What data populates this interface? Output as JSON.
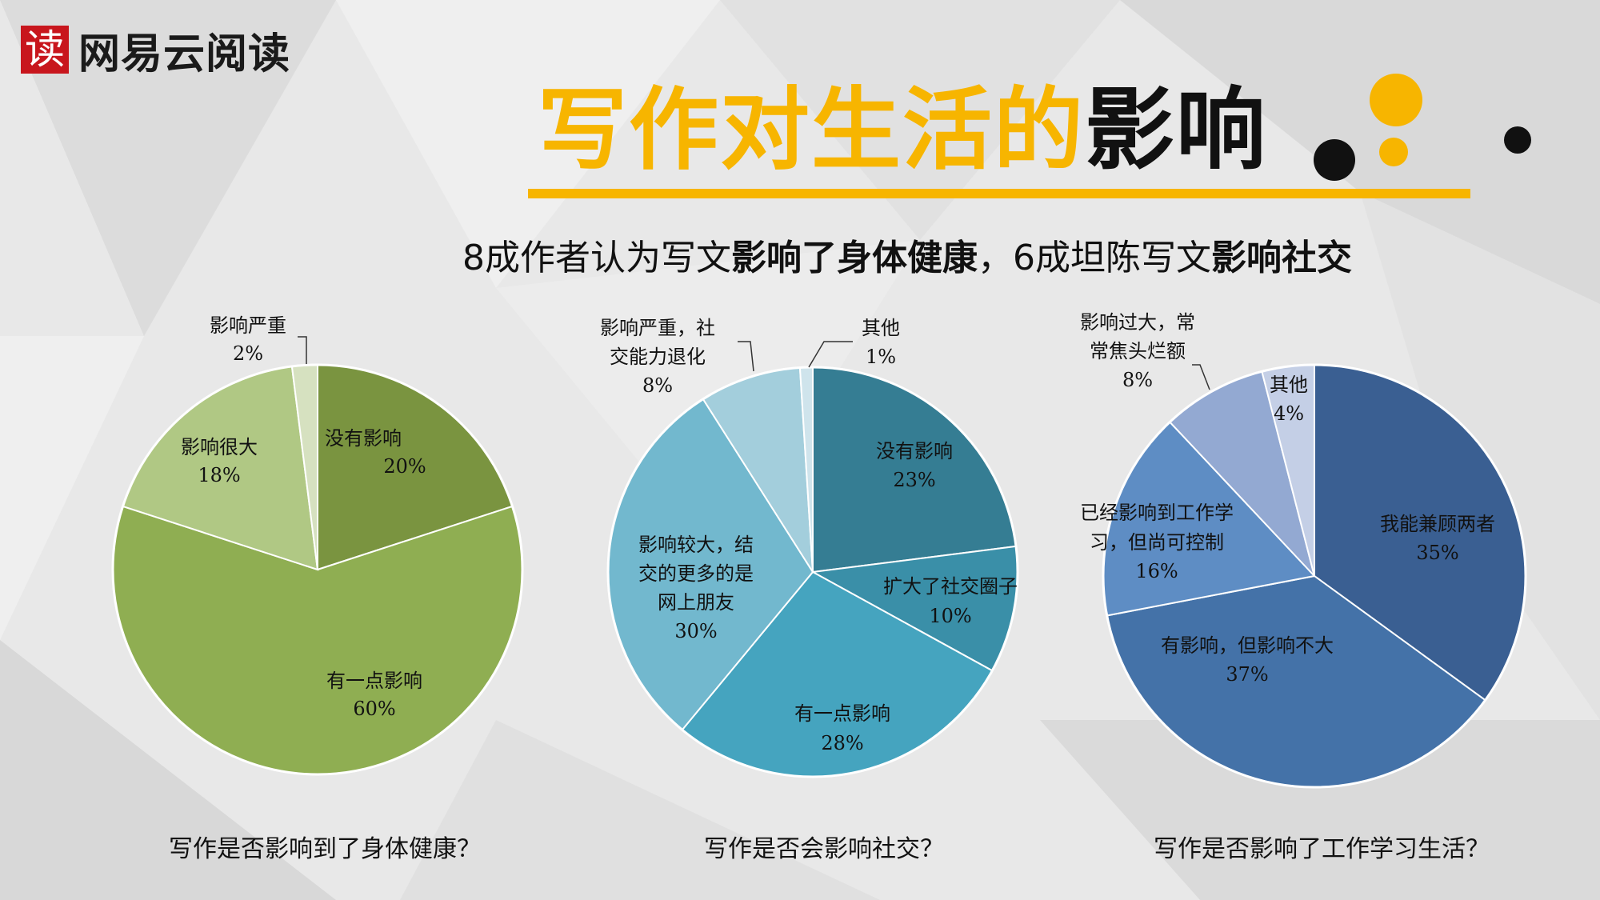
{
  "logo": {
    "mark": "读",
    "text": "网易云阅读"
  },
  "title": {
    "part1": "写作对生活的",
    "part2": "影响"
  },
  "subtitle": {
    "s1": "8成作者认为写文",
    "s2": "影响了身体健康",
    "s3": "，6成坦陈写文",
    "s4": "影响社交"
  },
  "colors": {
    "accent": "#f7b500",
    "dark": "#111111"
  },
  "chart_data": [
    {
      "type": "pie",
      "title": "写作是否影响到了身体健康？",
      "slices": [
        {
          "label": "没有影响",
          "value": 20,
          "pct": "20%",
          "color": "#7a9440"
        },
        {
          "label": "有一点影响",
          "value": 60,
          "pct": "60%",
          "color": "#8fae52"
        },
        {
          "label": "影响很大",
          "value": 18,
          "pct": "18%",
          "color": "#b0c884"
        },
        {
          "label": "影响严重",
          "value": 2,
          "pct": "2%",
          "color": "#d6e1c0"
        }
      ]
    },
    {
      "type": "pie",
      "title": "写作是否会影响社交？",
      "slices": [
        {
          "label": "没有影响",
          "value": 23,
          "pct": "23%",
          "color": "#357d93"
        },
        {
          "label": "扩大了社交圈子",
          "value": 10,
          "pct": "10%",
          "color": "#3a8fa8"
        },
        {
          "label": "有一点影响",
          "value": 28,
          "pct": "28%",
          "color": "#45a4bf"
        },
        {
          "label": "影响较大，结交的更多的是网上朋友",
          "value": 30,
          "pct": "30%",
          "color": "#72b8ce"
        },
        {
          "label": "影响严重，社交能力退化",
          "value": 8,
          "pct": "8%",
          "color": "#a3cedc"
        },
        {
          "label": "其他",
          "value": 1,
          "pct": "1%",
          "color": "#cfe4ec"
        }
      ]
    },
    {
      "type": "pie",
      "title": "写作是否影响了工作学习生活？",
      "slices": [
        {
          "label": "我能兼顾两者",
          "value": 35,
          "pct": "35%",
          "color": "#3a5f92"
        },
        {
          "label": "有影响，但影响不大",
          "value": 37,
          "pct": "37%",
          "color": "#4472a8"
        },
        {
          "label": "已经影响到工作学习，但尚可控制",
          "value": 16,
          "pct": "16%",
          "color": "#5e8dc4"
        },
        {
          "label": "影响过大，常常焦头烂额",
          "value": 8,
          "pct": "8%",
          "color": "#93a9d2"
        },
        {
          "label": "其他",
          "value": 4,
          "pct": "4%",
          "color": "#c4cfe6"
        }
      ]
    }
  ]
}
